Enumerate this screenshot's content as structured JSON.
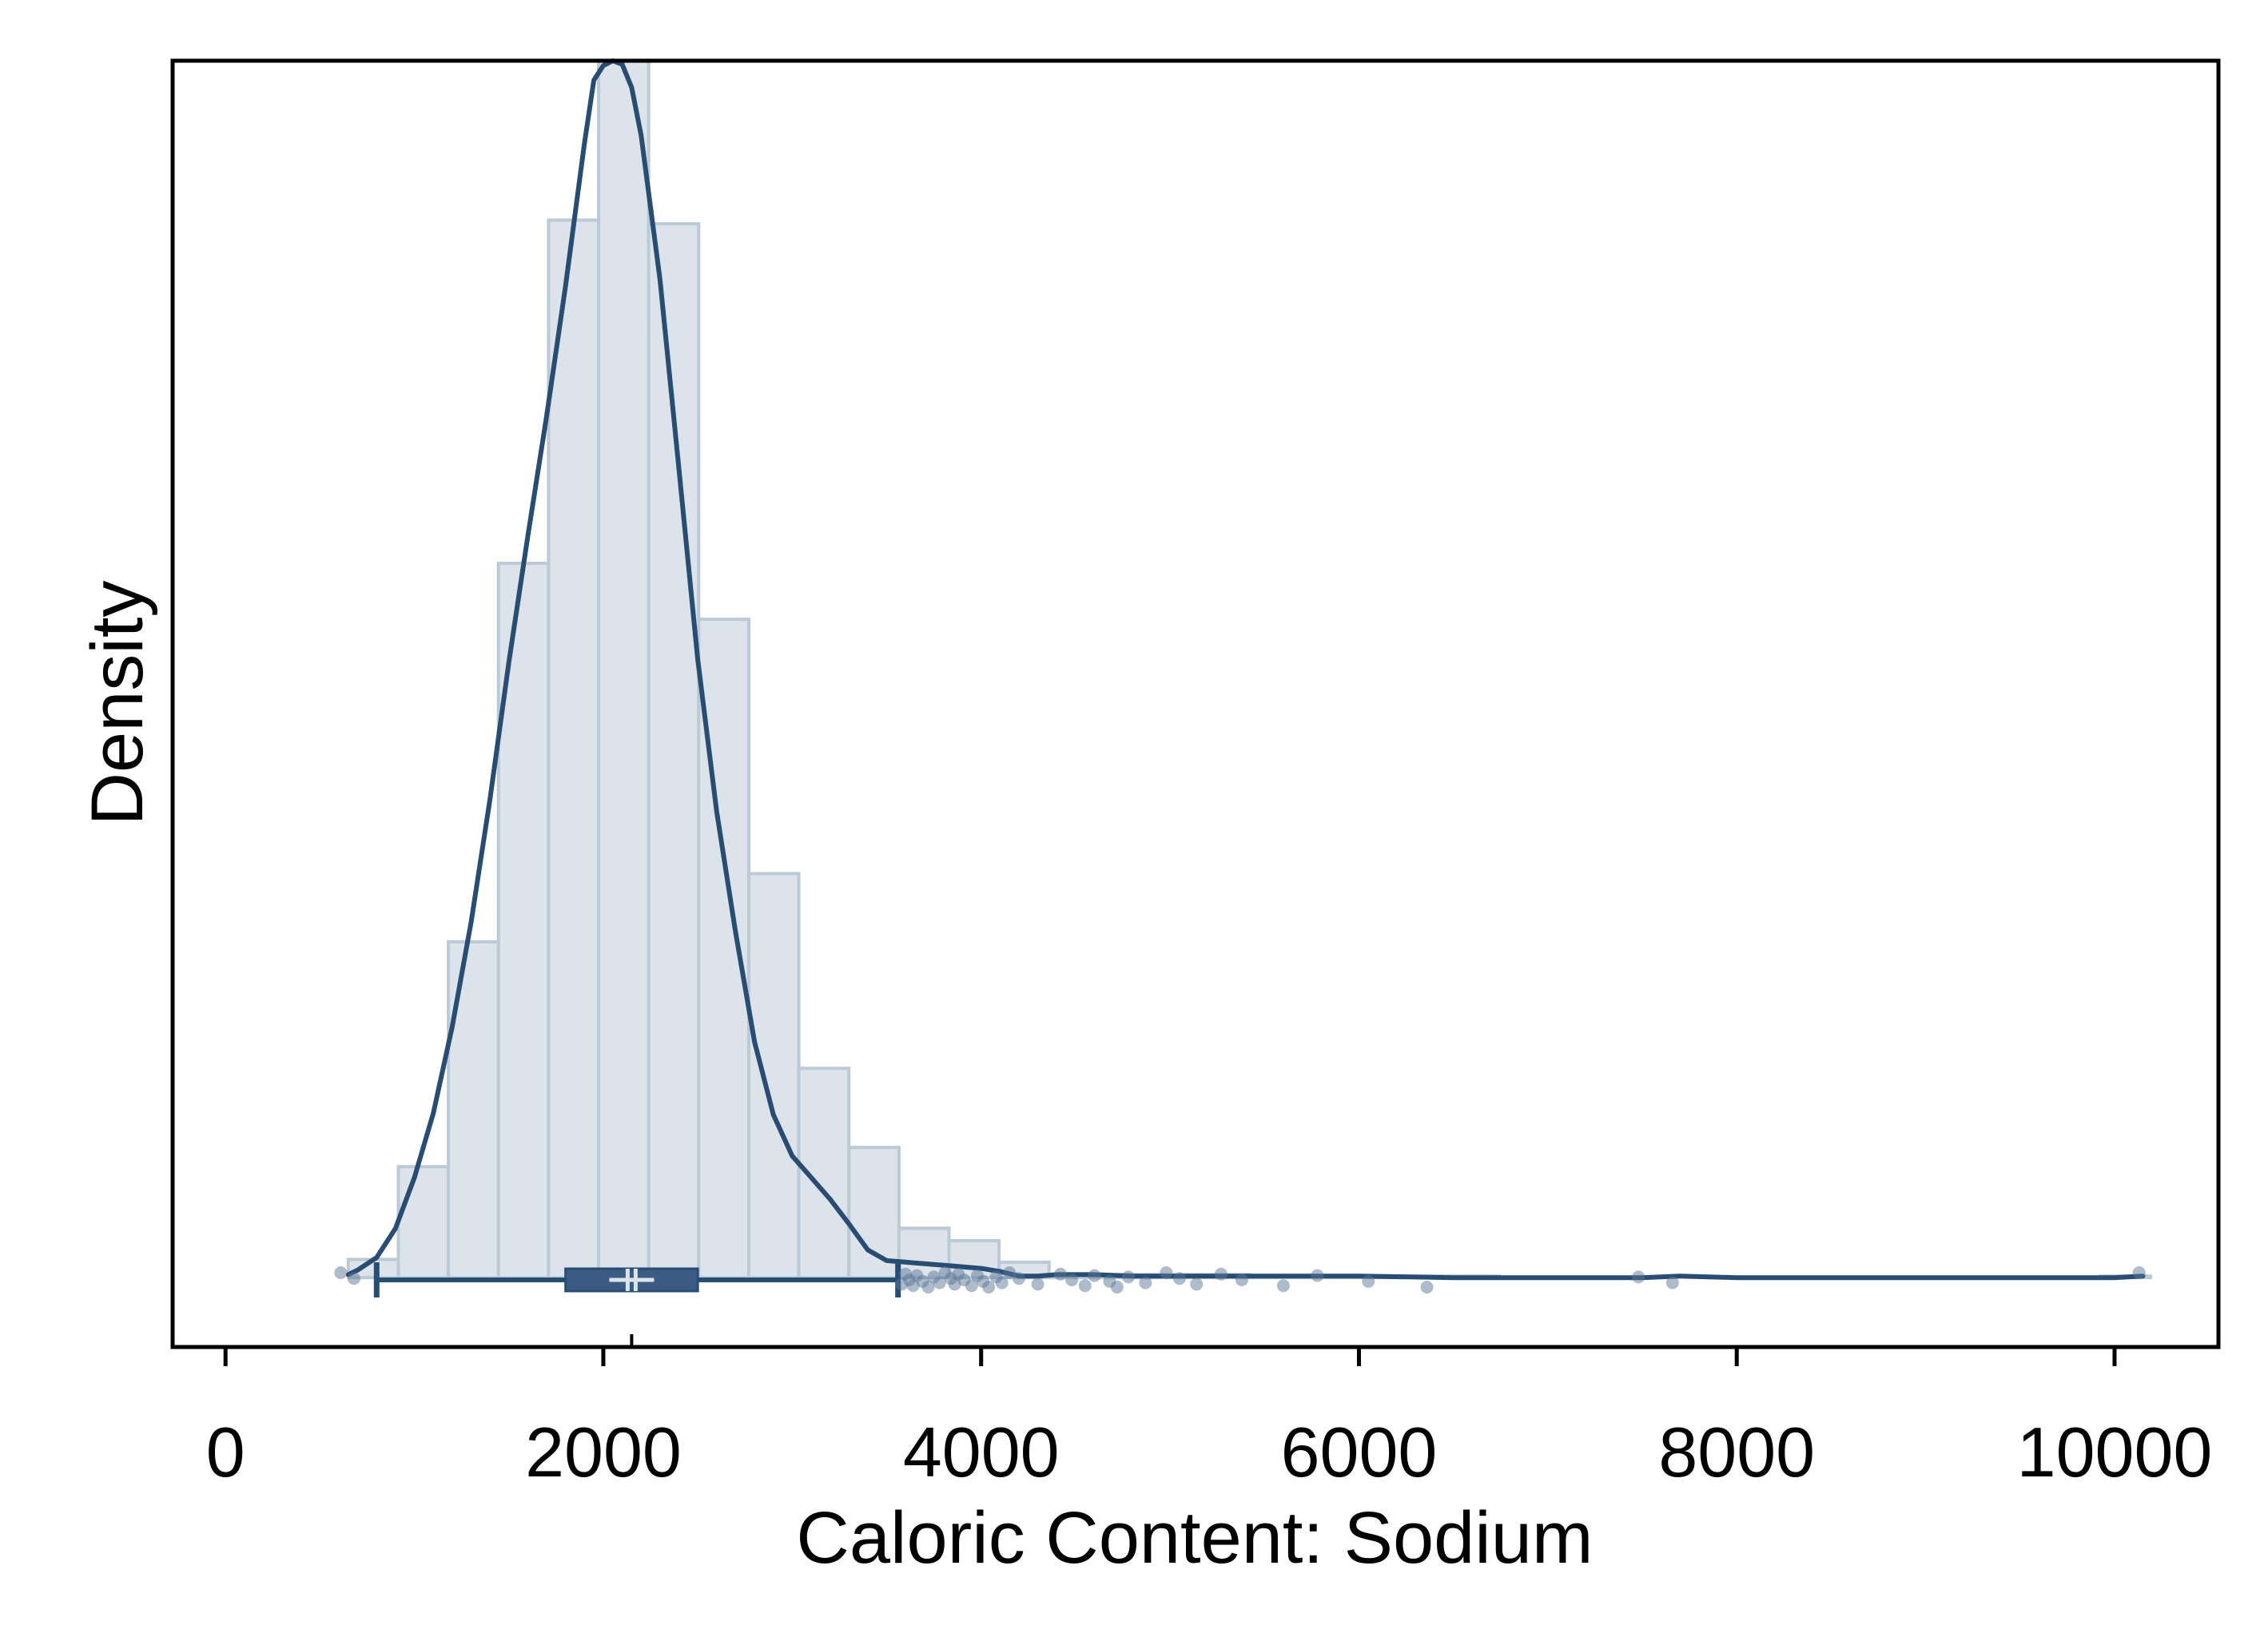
{
  "colors": {
    "background": "#ffffff",
    "plot_background": "#ffffff",
    "frame": "#000000",
    "bar_fill": "#dde3ea",
    "bar_stroke": "#bcc9d6",
    "density_line": "#294c73",
    "box_fill": "#3b5b82",
    "box_line": "#294c73",
    "median_mark": "#dde3ea",
    "point": "#5b7797"
  },
  "chart_data": {
    "type": "histogram",
    "title": "",
    "xlabel": "Caloric Content: Sodium",
    "ylabel": "Density",
    "xlim": [
      -280,
      10550
    ],
    "ylim": [
      -5.7e-05,
      0.001
    ],
    "x_ticks": [
      0,
      2000,
      4000,
      6000,
      8000,
      10000
    ],
    "x_tick_labels": [
      "0",
      "2000",
      "4000",
      "6000",
      "8000",
      "10000"
    ],
    "y_tick_labels_shown": false,
    "grid": false,
    "legend": "none",
    "histogram": {
      "bin_width": 265,
      "bin_edges": [
        650,
        915,
        1180,
        1445,
        1710,
        1975,
        2240,
        2505,
        2770,
        3035,
        3300,
        3565,
        3830,
        4095,
        4360,
        4625,
        4890,
        5155,
        5420,
        5685,
        5950,
        6215,
        6480,
        6745,
        7010,
        7275,
        7540,
        7805,
        8070,
        8335,
        8600,
        8865,
        9130,
        9395,
        9660,
        9925,
        10190
      ],
      "density": [
        1.5e-05,
        9.12e-05,
        0.000276,
        0.000587,
        0.000869,
        0.001,
        0.000866,
        0.000541,
        0.000332,
        0.000172,
        0.000107,
        4.06e-05,
        3.04e-05,
        1.27e-05,
        2.5e-06,
        2.5e-06,
        2.5e-06,
        2.5e-06,
        1.3e-06,
        1.3e-06,
        1.3e-06,
        1.3e-06,
        1.3e-06,
        0,
        0,
        0,
        0,
        0,
        0,
        0,
        0,
        0,
        0,
        0,
        0,
        1.3e-06
      ]
    },
    "kde": {
      "x": [
        650,
        700,
        800,
        900,
        1000,
        1100,
        1200,
        1300,
        1400,
        1500,
        1600,
        1700,
        1800,
        1900,
        1950,
        2000,
        2050,
        2100,
        2150,
        2200,
        2300,
        2400,
        2500,
        2600,
        2700,
        2800,
        2900,
        3000,
        3100,
        3200,
        3300,
        3400,
        3500,
        3600,
        3700,
        3800,
        3900,
        4000,
        4100,
        4200,
        4300,
        4400,
        4600,
        4800,
        5000,
        5500,
        6000,
        6500,
        7000,
        7500,
        7700,
        8000,
        9000,
        10000,
        10150
      ],
      "density": [
        2.5e-06,
        6.3e-06,
        1.65e-05,
        4.05e-05,
        8.23e-05,
        0.000135,
        0.000206,
        0.000292,
        0.000393,
        0.000506,
        0.000609,
        0.000708,
        0.000815,
        0.000932,
        0.000984,
        0.000996,
        0.001,
        0.000997,
        0.000978,
        0.000939,
        0.00082,
        0.000665,
        0.000508,
        0.000383,
        0.000284,
        0.000194,
        0.000134,
        0.0001,
        8.23e-05,
        6.46e-05,
        4.43e-05,
        2.28e-05,
        1.4e-05,
        1.27e-05,
        1.14e-05,
        1.02e-05,
        8.9e-06,
        7.6e-06,
        5.1e-06,
        1.3e-06,
        1.3e-06,
        2.5e-06,
        2.5e-06,
        1.3e-06,
        1.3e-06,
        1.3e-06,
        1.3e-06,
        0,
        0,
        0,
        1.3e-06,
        0,
        0,
        0,
        1.3e-06
      ]
    },
    "boxplot": {
      "q1": 1800,
      "median": 2150,
      "q3": 2500,
      "whisker_low": 800,
      "whisker_high": 3560,
      "outliers": [
        610,
        680,
        3580,
        3600,
        3620,
        3640,
        3660,
        3690,
        3720,
        3750,
        3780,
        3810,
        3840,
        3860,
        3880,
        3910,
        3950,
        3980,
        4010,
        4040,
        4080,
        4110,
        4150,
        4200,
        4300,
        4420,
        4480,
        4550,
        4600,
        4680,
        4720,
        4780,
        4870,
        4980,
        5050,
        5140,
        5270,
        5380,
        5600,
        5780,
        6050,
        6360,
        7480,
        7660,
        10130
      ]
    }
  }
}
